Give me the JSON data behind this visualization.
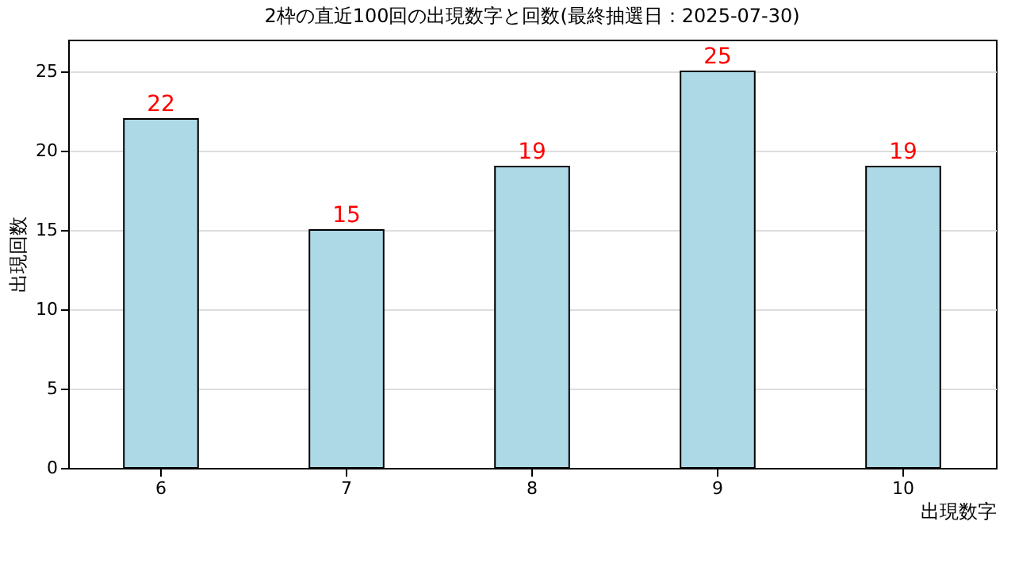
{
  "chart_data": {
    "type": "bar",
    "title": "2枠の直近100回の出現数字と回数(最終抽選日：2025-07-30)",
    "xlabel": "出現数字",
    "ylabel": "出現回数",
    "categories": [
      "6",
      "7",
      "8",
      "9",
      "10"
    ],
    "values": [
      22,
      15,
      19,
      25,
      19
    ],
    "color": "#add8e6",
    "ylim": [
      0,
      27
    ],
    "yticks": [
      0,
      5,
      10,
      15,
      20,
      25
    ],
    "grid": "y",
    "data_labels": true
  }
}
